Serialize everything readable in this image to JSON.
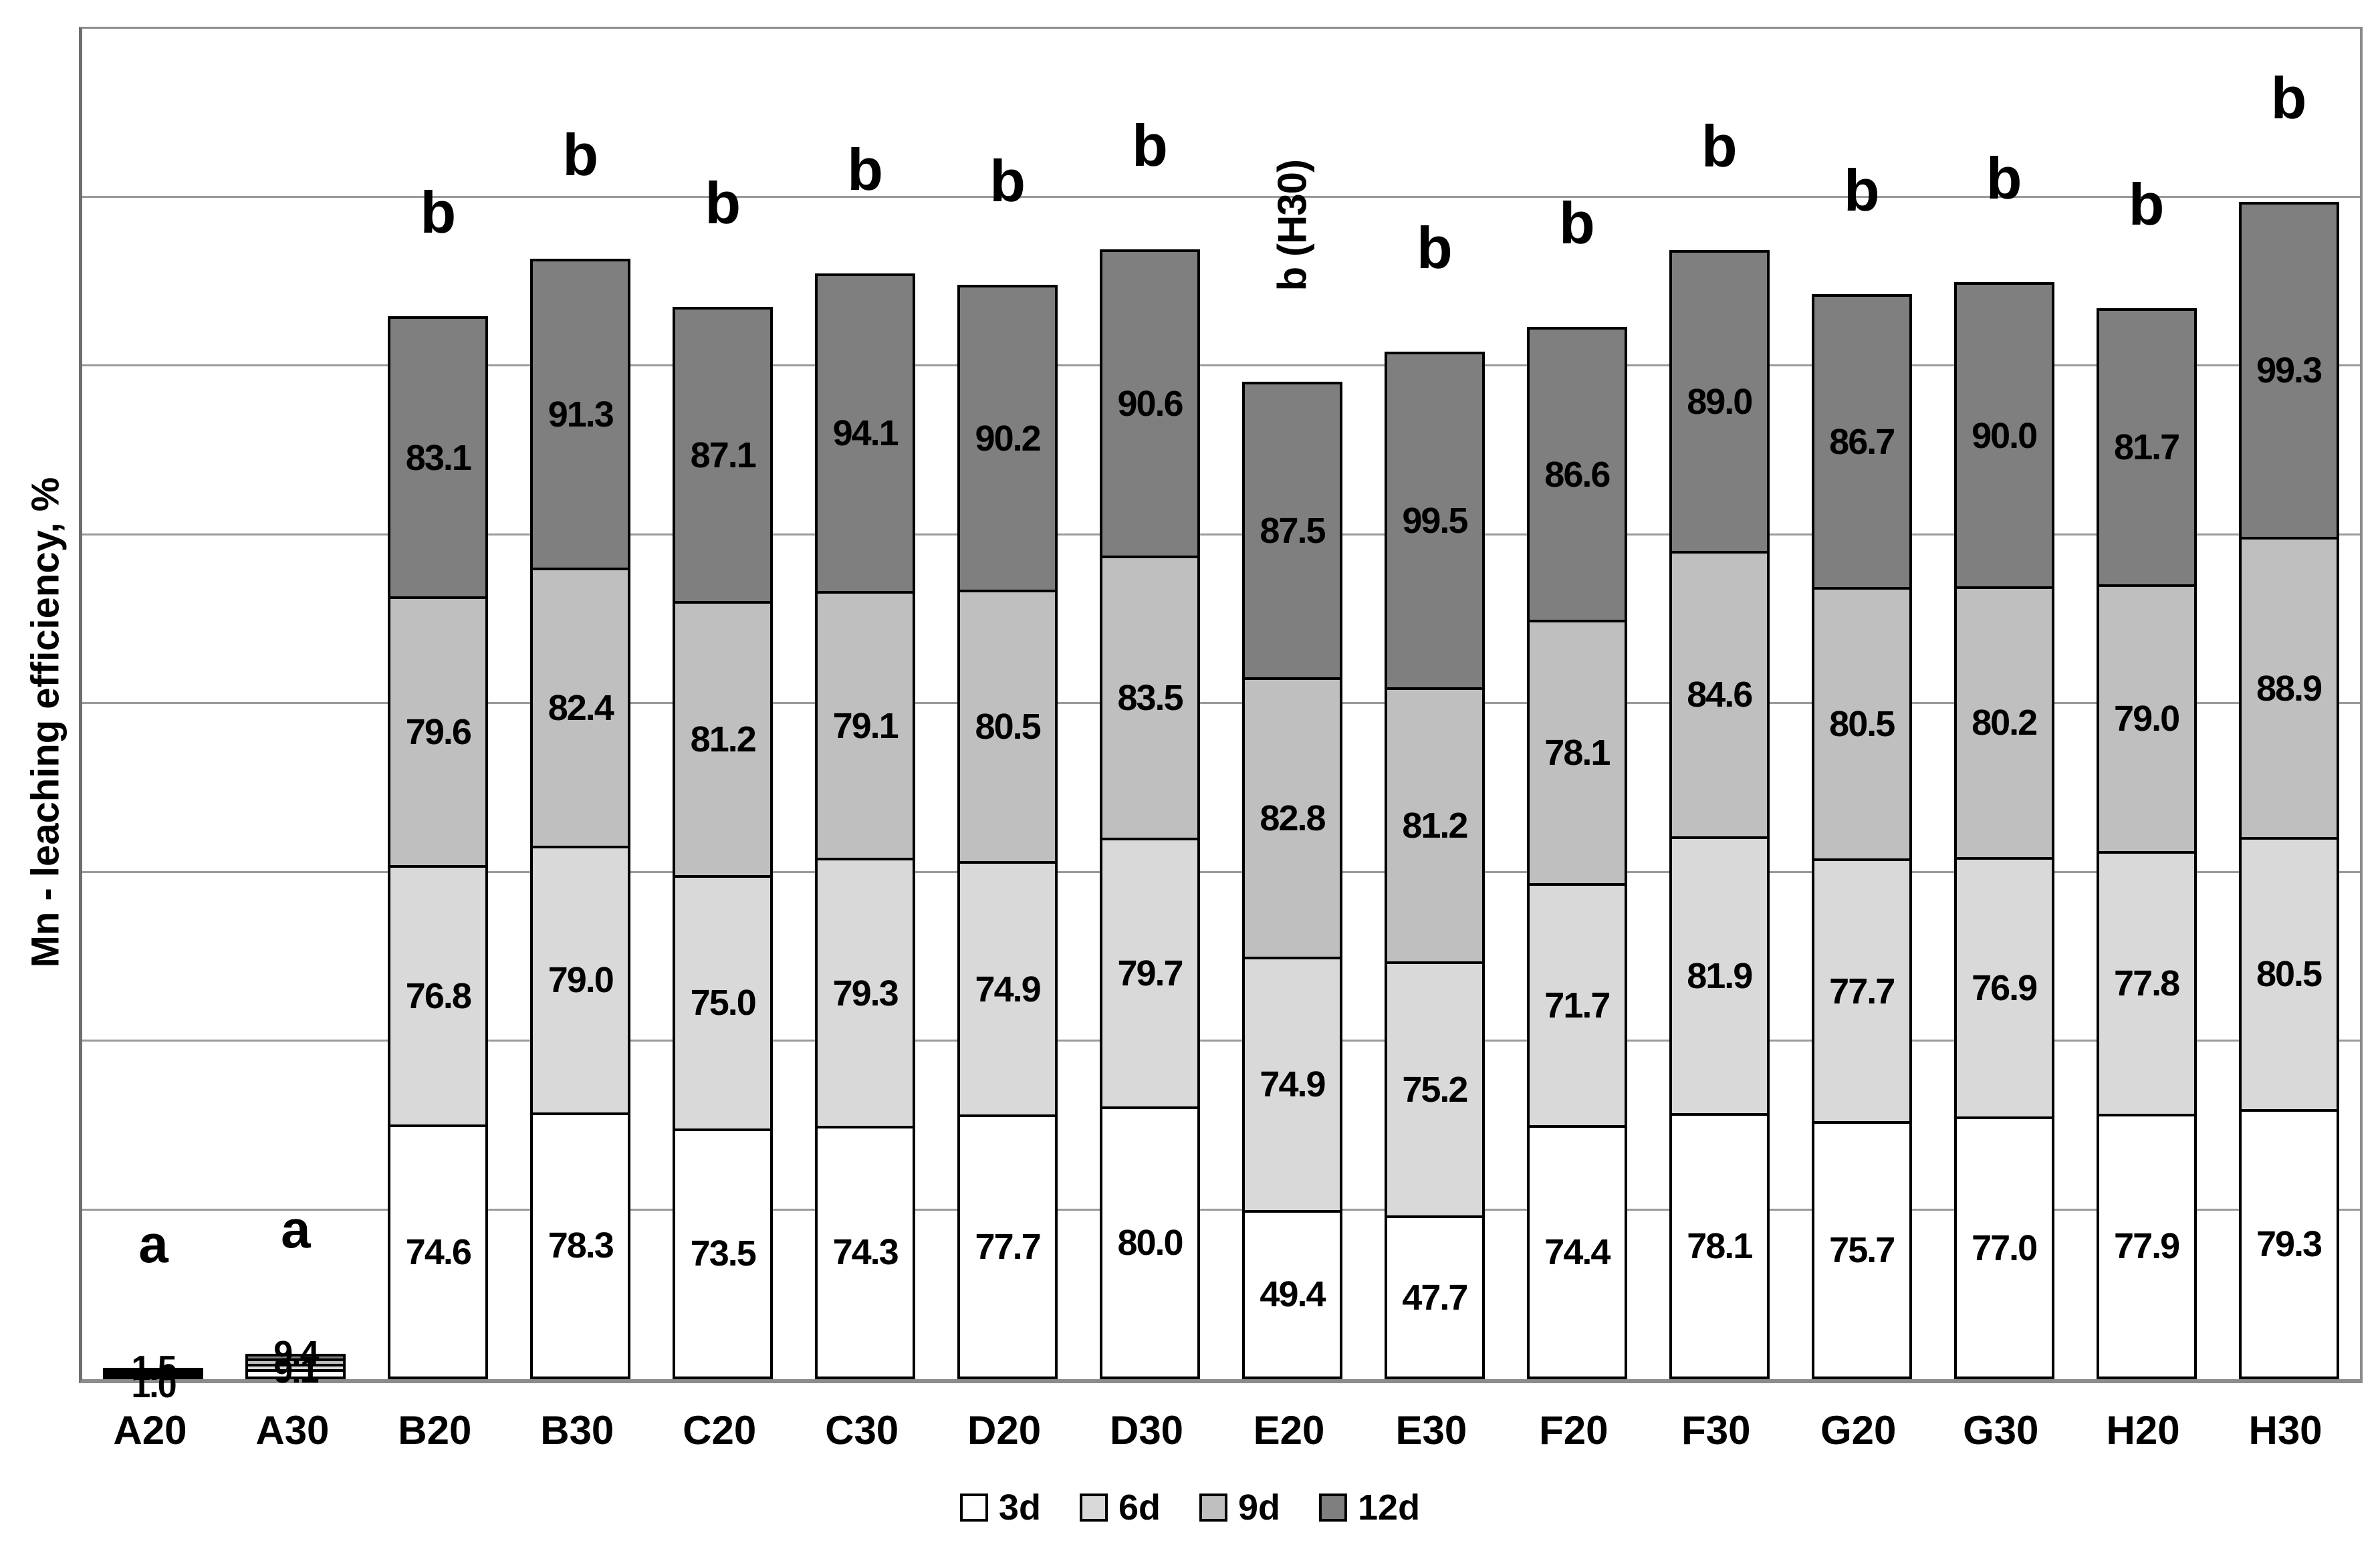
{
  "chart_data": {
    "type": "bar",
    "stacked": true,
    "title": "",
    "xlabel": "",
    "ylabel": "Mn - leaching efficiency, %",
    "ylim": [
      0,
      400
    ],
    "gridline_step": 50,
    "grid": "horizontal",
    "y_tick_labels_visible": false,
    "legend_position": "bottom",
    "categories": [
      "A20",
      "A30",
      "B20",
      "B30",
      "C20",
      "C30",
      "D20",
      "D30",
      "E20",
      "E30",
      "F20",
      "F30",
      "G20",
      "G30",
      "H20",
      "H30"
    ],
    "series": [
      {
        "name": "3d",
        "color": "#ffffff",
        "values": [
          0.8,
          2.2,
          74.6,
          78.3,
          73.5,
          74.3,
          77.7,
          80.0,
          49.4,
          47.7,
          74.4,
          78.1,
          75.7,
          77.0,
          77.9,
          79.3
        ]
      },
      {
        "name": "6d",
        "color": "#d9d9d9",
        "values": [
          0.5,
          1.6,
          76.8,
          79.0,
          75.0,
          79.3,
          74.9,
          79.7,
          74.9,
          75.2,
          71.7,
          81.9,
          77.7,
          76.9,
          77.8,
          80.5
        ]
      },
      {
        "name": "9d",
        "color": "#bfbfbf",
        "values": [
          0.5,
          1.5,
          79.6,
          82.4,
          81.2,
          79.1,
          80.5,
          83.5,
          82.8,
          81.2,
          78.1,
          84.6,
          80.5,
          80.2,
          79.0,
          88.9
        ]
      },
      {
        "name": "12d",
        "color": "#7f7f7f",
        "values": [
          0.5,
          1.5,
          83.1,
          91.3,
          87.1,
          94.1,
          90.2,
          90.6,
          87.5,
          99.5,
          86.6,
          89.0,
          86.7,
          90.0,
          81.7,
          99.3
        ]
      }
    ],
    "significance_annotations": [
      "a",
      "a",
      "b",
      "b",
      "b",
      "b",
      "b",
      "b",
      "b (H30)",
      "b",
      "b",
      "b",
      "b",
      "b",
      "b",
      "b"
    ],
    "rotated_annotation_category": "E20",
    "overlapping_small_bar_labels": {
      "A20": [
        "1.5",
        "1.0"
      ],
      "A30": [
        "9.4",
        "9.1"
      ]
    }
  },
  "colors": {
    "bar_border": "#000000",
    "gridline": "#9a9a9a",
    "axis_frame": "#8c8c8c",
    "text": "#000000",
    "background": "#ffffff"
  },
  "legend": {
    "items": [
      {
        "label": "3d",
        "color": "#ffffff"
      },
      {
        "label": "6d",
        "color": "#d9d9d9"
      },
      {
        "label": "9d",
        "color": "#bfbfbf"
      },
      {
        "label": "12d",
        "color": "#7f7f7f"
      }
    ]
  }
}
